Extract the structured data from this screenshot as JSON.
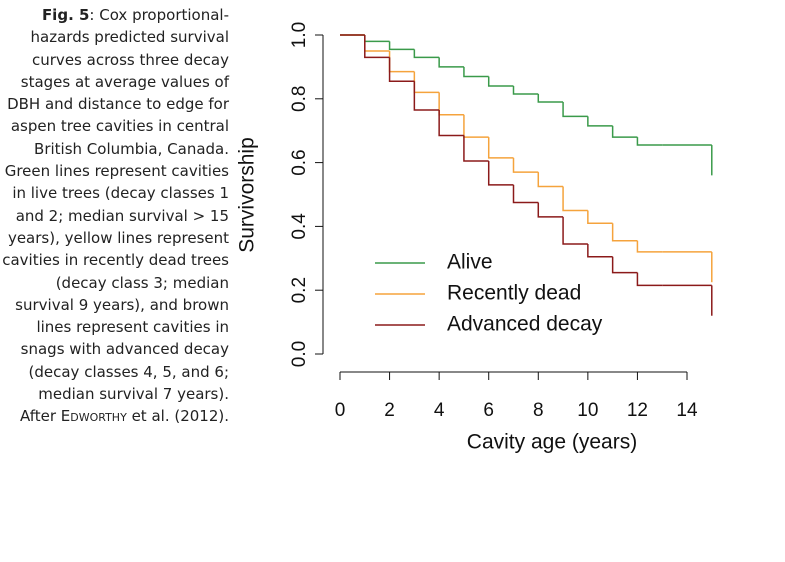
{
  "chart_data": {
    "type": "step",
    "caption": {
      "label": "Fig. 5",
      "text": ": Cox proportional-hazards predicted survival curves across three decay stages at average values of DBH and distance to edge for aspen tree cavities in central British Columbia, Canada. Green lines represent cavities in live trees (decay classes 1 and 2; median survival > 15 years), yellow lines represent cavities in recently dead trees (decay class 3; median survival 9 years), and brown lines represent cavities in snags with advanced decay (decay classes 4, 5, and 6; median survival 7 years). After ",
      "author": "Edworthy",
      "tail": " et al. (2012)."
    },
    "x_label": "Cavity age (years)",
    "y_label": "Survivorship",
    "x": [
      0,
      1,
      2,
      3,
      4,
      5,
      6,
      7,
      8,
      9,
      10,
      11,
      12,
      13,
      14,
      15
    ],
    "series": [
      {
        "name": "Alive",
        "color": "#3a9a4a",
        "values": [
          1.0,
          0.98,
          0.955,
          0.93,
          0.9,
          0.87,
          0.84,
          0.815,
          0.79,
          0.745,
          0.715,
          0.68,
          0.655,
          0.655,
          0.655,
          0.56
        ]
      },
      {
        "name": "Recently dead",
        "color": "#f5a33c",
        "values": [
          1.0,
          0.95,
          0.885,
          0.82,
          0.75,
          0.68,
          0.615,
          0.57,
          0.525,
          0.45,
          0.41,
          0.355,
          0.32,
          0.32,
          0.32,
          0.225
        ]
      },
      {
        "name": "Advanced decay",
        "color": "#8b1a1a",
        "values": [
          1.0,
          0.93,
          0.855,
          0.765,
          0.685,
          0.605,
          0.53,
          0.475,
          0.43,
          0.345,
          0.305,
          0.255,
          0.215,
          0.215,
          0.215,
          0.12
        ]
      }
    ],
    "xlim": [
      0,
      14
    ],
    "xticks": [
      0,
      2,
      4,
      6,
      8,
      10,
      12,
      14
    ],
    "ylim": [
      0,
      1
    ],
    "yticks": [
      {
        "value": 0,
        "label": "0.0"
      },
      0.2,
      0.4,
      0.6,
      0.8,
      {
        "value": 1,
        "label": "1.0"
      }
    ],
    "legend": "bottom-left"
  }
}
